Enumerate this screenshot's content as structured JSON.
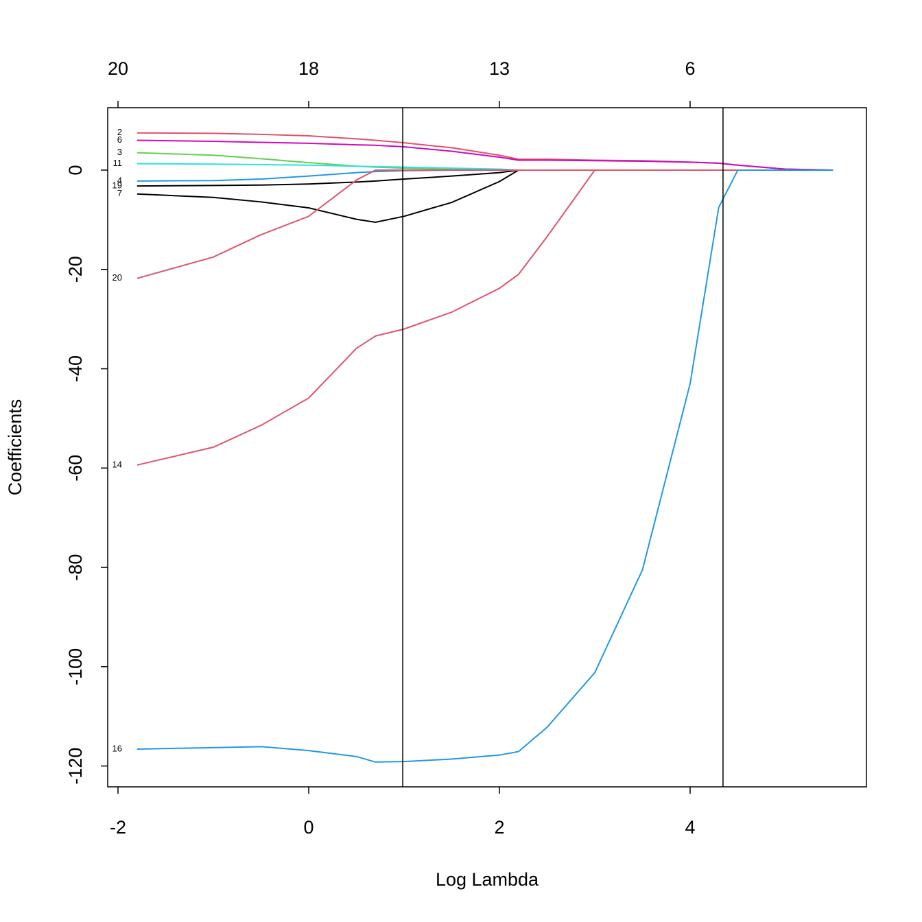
{
  "chart_data": {
    "type": "line",
    "xlabel": "Log Lambda",
    "ylabel": "Coefficients",
    "xlim": [
      -2.108,
      5.849
    ],
    "ylim": [
      -124.2,
      12.57
    ],
    "xticks": [
      -2,
      0,
      2,
      4
    ],
    "yticks": [
      0,
      -20,
      -40,
      -60,
      -80,
      -100,
      -120
    ],
    "top_ticks": [
      {
        "value": -2,
        "label": "20"
      },
      {
        "value": 0,
        "label": "18"
      },
      {
        "value": 2,
        "label": "13"
      },
      {
        "value": 4,
        "label": "6"
      }
    ],
    "vlines": [
      0.986,
      4.345
    ],
    "x": [
      -1.8,
      -1,
      -0.5,
      0,
      0.5,
      0.7,
      1,
      1.5,
      2,
      2.2,
      2.5,
      3,
      3.5,
      4,
      4.3,
      4.5,
      5,
      5.5
    ],
    "series": [
      {
        "name": "2",
        "color": "#DF536B",
        "values": [
          7.5,
          7.4,
          7.2,
          6.9,
          6.3,
          6.0,
          5.5,
          4.5,
          3.0,
          2.2,
          2.2,
          2.0,
          1.9,
          1.6,
          1.4,
          1.0,
          0.2,
          0
        ]
      },
      {
        "name": "6",
        "color": "#CD0BBC",
        "values": [
          6.0,
          5.8,
          5.6,
          5.4,
          5.1,
          5.0,
          4.7,
          3.8,
          2.6,
          2.0,
          2.0,
          1.9,
          1.8,
          1.6,
          1.4,
          1.0,
          0.2,
          0
        ]
      },
      {
        "name": "3",
        "color": "#61D04F",
        "values": [
          3.5,
          3.0,
          2.3,
          1.5,
          0.8,
          0.6,
          0.4,
          0.2,
          0,
          0,
          0,
          0,
          0,
          0,
          0,
          0,
          0,
          0
        ]
      },
      {
        "name": "11",
        "color": "#28E2E5",
        "values": [
          1.3,
          1.2,
          1.1,
          1.0,
          0.8,
          0.7,
          0.6,
          0.4,
          0.2,
          0,
          0,
          0,
          0,
          0,
          0,
          0,
          0,
          0
        ]
      },
      {
        "name": "4",
        "color": "#2297E6",
        "values": [
          -2.2,
          -2.1,
          -1.8,
          -1.2,
          -0.5,
          -0.3,
          -0.1,
          0,
          0,
          0,
          0,
          0,
          0,
          0,
          0,
          0,
          0,
          0
        ]
      },
      {
        "name": "19",
        "color": "#000000",
        "values": [
          -3.2,
          -3.1,
          -3.0,
          -2.8,
          -2.4,
          -2.2,
          -1.8,
          -1.2,
          -0.5,
          0,
          0,
          0,
          0,
          0,
          0,
          0,
          0,
          0
        ]
      },
      {
        "name": "7",
        "color": "#000000",
        "values": [
          -4.8,
          -5.5,
          -6.4,
          -7.6,
          -9.9,
          -10.5,
          -9.3,
          -6.5,
          -2.3,
          0,
          0,
          0,
          0,
          0,
          0,
          0,
          0,
          0
        ]
      },
      {
        "name": "20",
        "color": "#DF536B",
        "values": [
          -21.8,
          -17.5,
          -13.0,
          -9.3,
          -2.0,
          0,
          0,
          0,
          0,
          0,
          0,
          0,
          0,
          0,
          0,
          0,
          0,
          0
        ]
      },
      {
        "name": "14",
        "color": "#DF536B",
        "values": [
          -59.4,
          -55.8,
          -51.4,
          -45.9,
          -35.9,
          -33.4,
          -32.0,
          -28.6,
          -23.8,
          -21.0,
          -13.4,
          0,
          0,
          0,
          0,
          0,
          0,
          0
        ]
      },
      {
        "name": "16",
        "color": "#2297E6",
        "values": [
          -116.6,
          -116.3,
          -116.1,
          -116.9,
          -118.1,
          -119.2,
          -119.1,
          -118.6,
          -117.8,
          -117.1,
          -112.2,
          -101.2,
          -80.5,
          -43.0,
          -7.5,
          0,
          0,
          0
        ]
      }
    ]
  }
}
